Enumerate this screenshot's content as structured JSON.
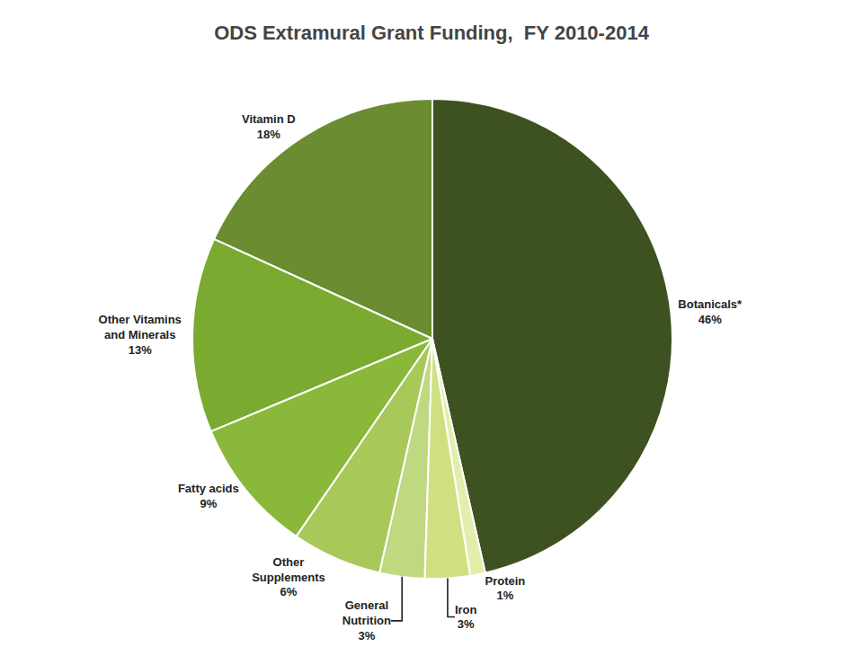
{
  "chart_data": {
    "type": "pie",
    "title": "ODS Extramural Grant Funding,  FY 2010-2014",
    "categories": [
      "Botanicals*",
      "Vitamin D",
      "Other Vitamins\nand Minerals",
      "Fatty acids",
      "Other\nSupplements",
      "General\nNutrition",
      "Iron",
      "Protein"
    ],
    "values": [
      46,
      18,
      13,
      9,
      6,
      3,
      3,
      1
    ],
    "value_labels": [
      "46%",
      "18%",
      "13%",
      "9%",
      "6%",
      "3%",
      "3%",
      "1%"
    ],
    "data_labels": true,
    "colors": [
      "#3d5220",
      "#6b8c30",
      "#7aaa30",
      "#8ab83a",
      "#a8c85a",
      "#c0d880",
      "#cfe080",
      "#e2eeaa"
    ]
  }
}
